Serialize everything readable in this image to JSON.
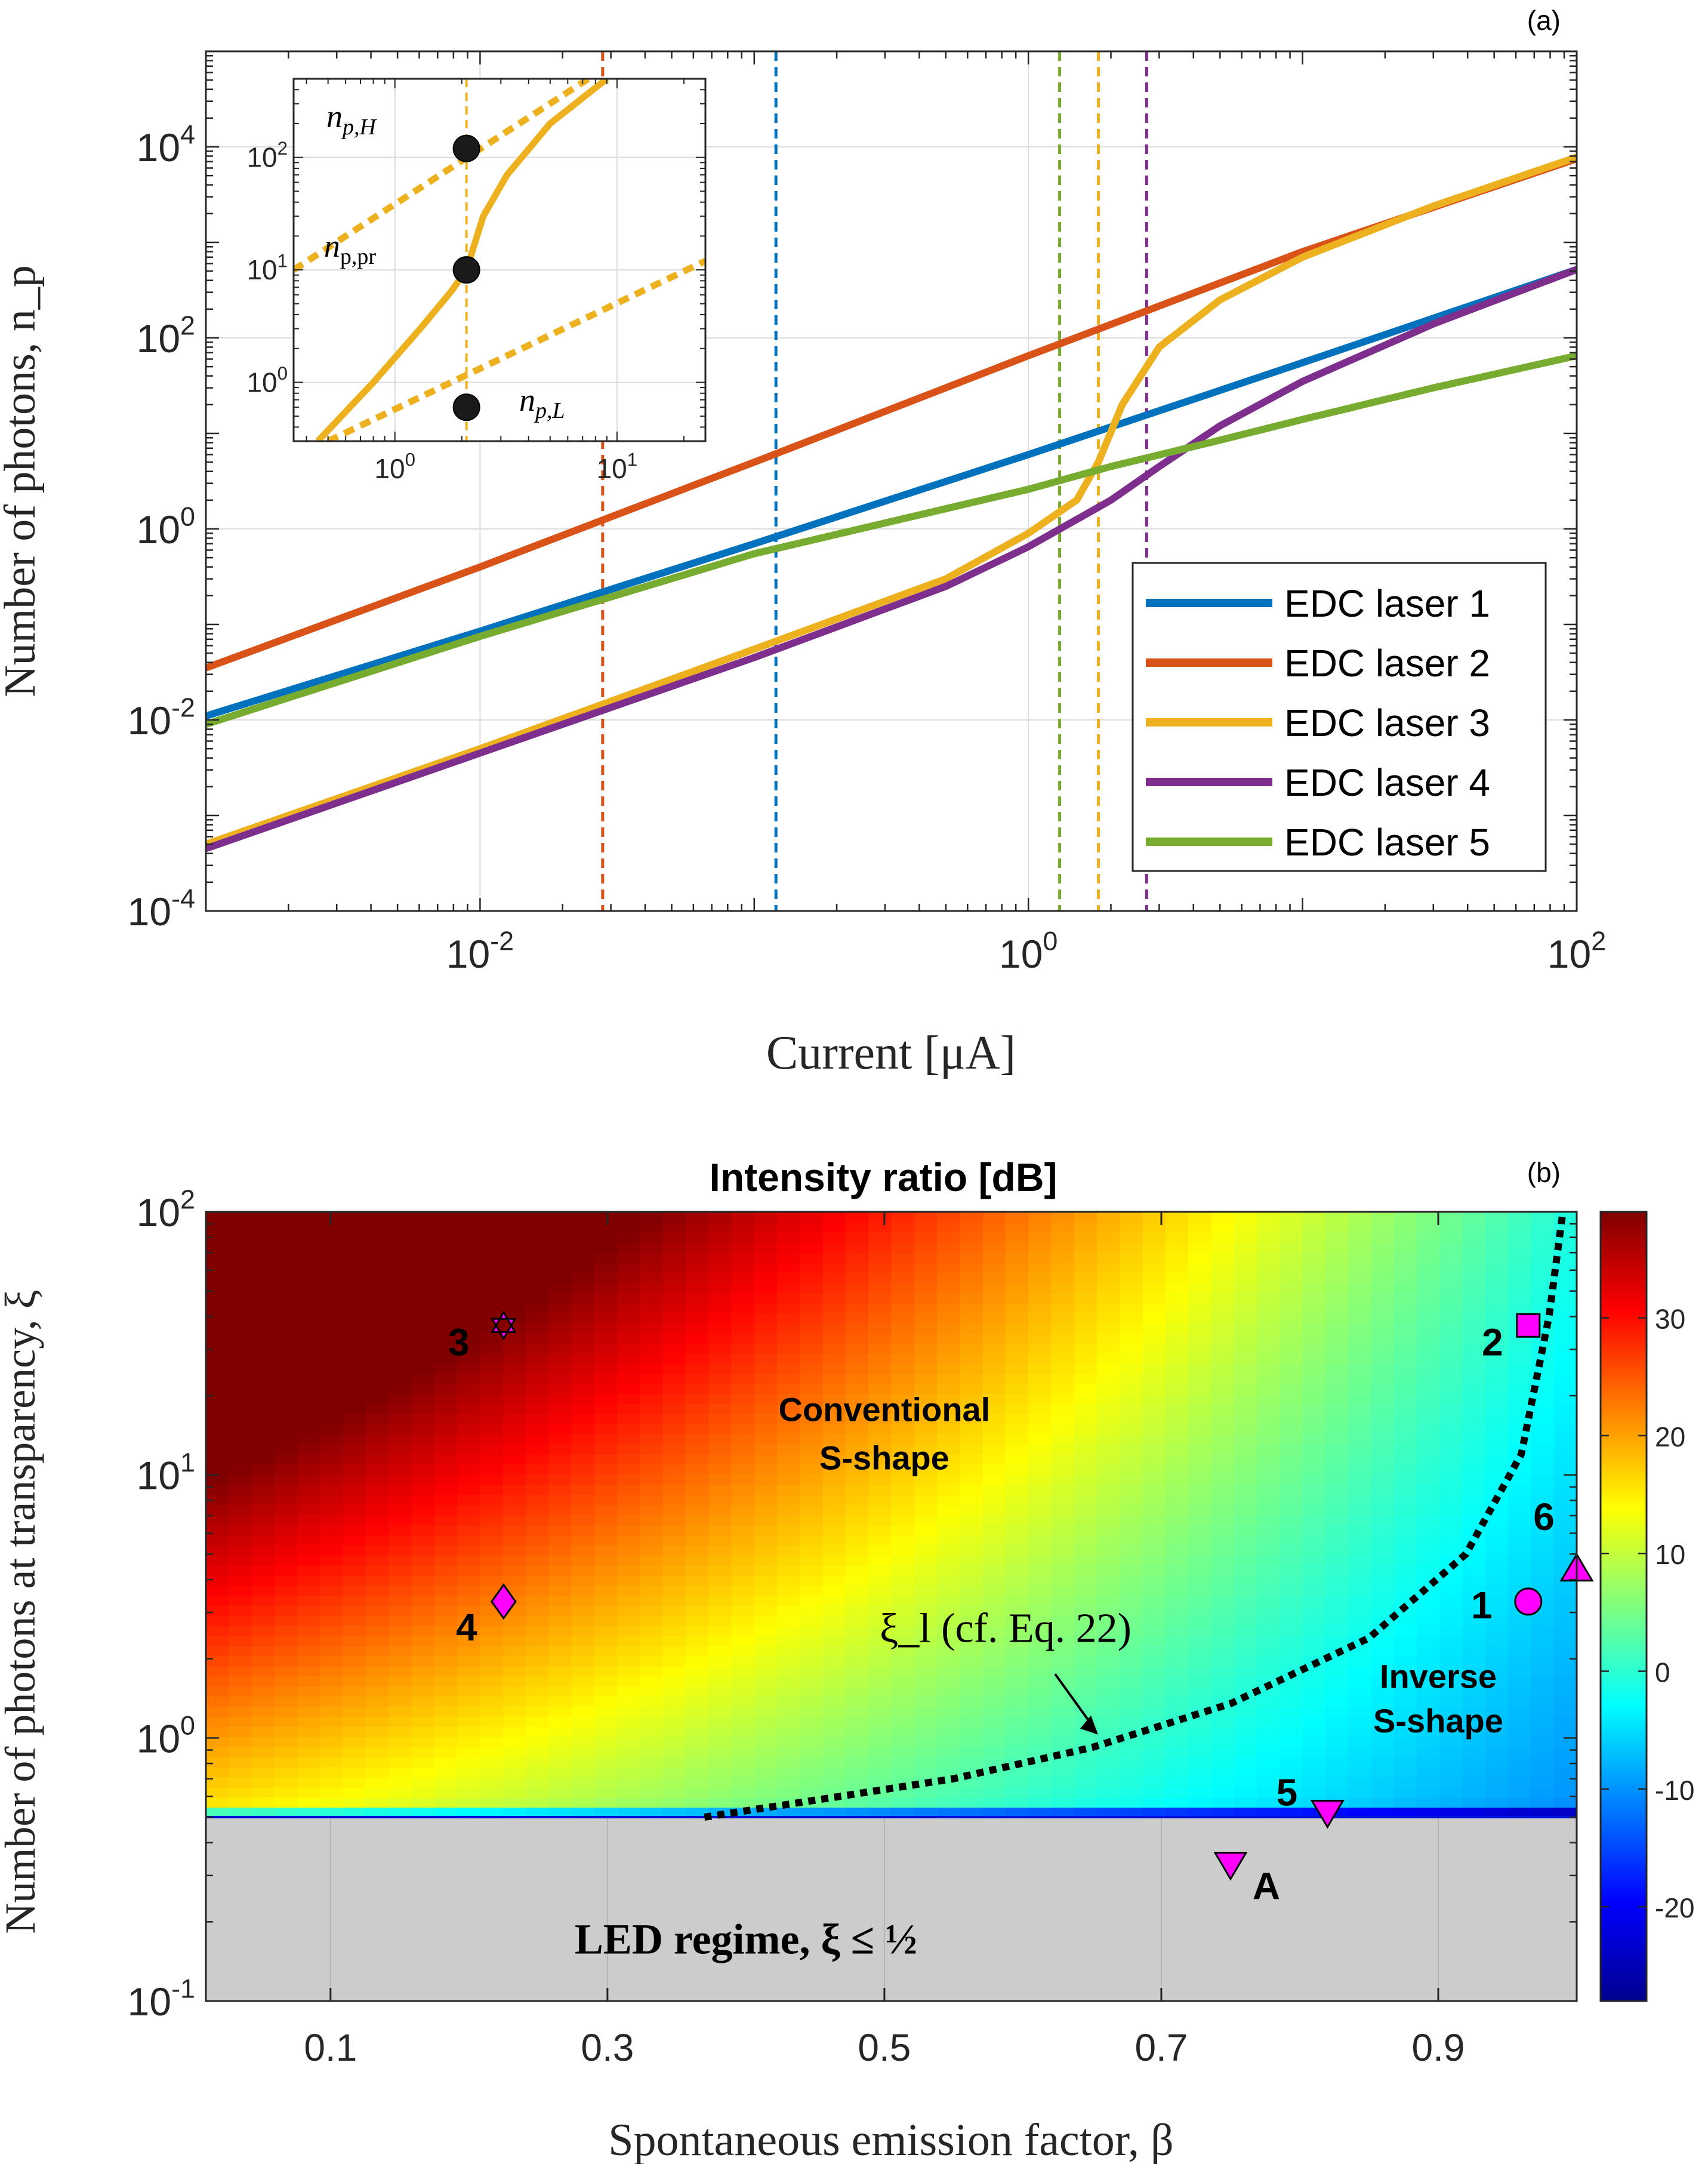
{
  "chart_data": [
    {
      "type": "line",
      "panel": "(a)",
      "xscale": "log",
      "yscale": "log",
      "xlabel": "Current [μA]",
      "ylabel": "Number of photons, n_p",
      "xlim": [
        0.001,
        100
      ],
      "ylim": [
        0.0001,
        100000
      ],
      "xticks": [
        {
          "v": 0.01,
          "base": "10",
          "exp": "-2"
        },
        {
          "v": 1,
          "base": "10",
          "exp": "0"
        },
        {
          "v": 100,
          "base": "10",
          "exp": "2"
        }
      ],
      "yticks": [
        {
          "v": 0.0001,
          "base": "10",
          "exp": "-4"
        },
        {
          "v": 0.01,
          "base": "10",
          "exp": "-2"
        },
        {
          "v": 1,
          "base": "10",
          "exp": "0"
        },
        {
          "v": 100,
          "base": "10",
          "exp": "2"
        },
        {
          "v": 10000,
          "base": "10",
          "exp": "4"
        }
      ],
      "legend": "bottom-right",
      "series": [
        {
          "name": "EDC laser 1",
          "color": "#0072BD",
          "threshold": 0.12,
          "x": [
            0.001,
            0.01,
            0.1,
            1,
            10,
            100
          ],
          "y": [
            0.011,
            0.085,
            0.7,
            6,
            55,
            520
          ]
        },
        {
          "name": "EDC laser 2",
          "color": "#D95319",
          "threshold": 0.028,
          "x": [
            0.001,
            0.01,
            0.1,
            1,
            10,
            100
          ],
          "y": [
            0.035,
            0.4,
            5,
            65,
            800,
            7500
          ]
        },
        {
          "name": "EDC laser 3",
          "color": "#EDB120",
          "threshold": 1.8,
          "x": [
            0.001,
            0.01,
            0.1,
            0.5,
            1,
            1.5,
            1.8,
            2.2,
            3,
            5,
            10,
            30,
            100
          ],
          "y": [
            0.0005,
            0.005,
            0.055,
            0.3,
            0.9,
            2,
            5,
            20,
            80,
            250,
            700,
            2400,
            7800
          ]
        },
        {
          "name": "EDC laser 4",
          "color": "#7E2F8E",
          "threshold": 2.7,
          "x": [
            0.001,
            0.01,
            0.1,
            0.5,
            1,
            2,
            3,
            5,
            10,
            30,
            100
          ],
          "y": [
            0.00045,
            0.0045,
            0.045,
            0.25,
            0.65,
            2,
            4.5,
            12,
            35,
            140,
            520
          ]
        },
        {
          "name": "EDC laser 5",
          "color": "#77AC30",
          "threshold": 1.3,
          "x": [
            0.001,
            0.01,
            0.1,
            1,
            2,
            5,
            10,
            30,
            100
          ],
          "y": [
            0.009,
            0.075,
            0.55,
            2.6,
            4.5,
            8.5,
            14,
            30,
            65
          ]
        }
      ],
      "inset": {
        "xlim": [
          0.35,
          25
        ],
        "ylim": [
          0.3,
          500
        ],
        "xticks": [
          {
            "v": 1,
            "base": "10",
            "exp": "0"
          },
          {
            "v": 10,
            "base": "10",
            "exp": "1"
          }
        ],
        "yticks": [
          {
            "v": 1,
            "base": "10",
            "exp": "0"
          },
          {
            "v": 10,
            "base": "10",
            "exp": "1"
          },
          {
            "v": 100,
            "base": "10",
            "exp": "2"
          }
        ],
        "threshold": 2.1,
        "curve": {
          "x": [
            0.45,
            0.8,
            1.3,
            1.8,
            2.1,
            2.5,
            3.2,
            5,
            9
          ],
          "y": [
            0.3,
            1,
            3,
            6.5,
            10,
            30,
            70,
            200,
            500
          ]
        },
        "asymptote_high": {
          "x": [
            0.35,
            8
          ],
          "y": [
            10,
            550
          ]
        },
        "asymptote_low": {
          "x": [
            0.5,
            25
          ],
          "y": [
            0.3,
            12
          ]
        },
        "points": [
          {
            "label": "H",
            "x": 2.1,
            "y": 120
          },
          {
            "label": "pr",
            "x": 2.1,
            "y": 10
          },
          {
            "label": "L",
            "x": 2.1,
            "y": 0.6
          }
        ]
      }
    },
    {
      "type": "heatmap",
      "panel": "(b)",
      "title": "Intensity ratio [dB]",
      "xlabel": "Spontaneous emission factor, β",
      "ylabel": "Number of photons at transparency, ξ",
      "xlim": [
        0.01,
        1
      ],
      "ylim": [
        0.1,
        100
      ],
      "yscale": "log",
      "xticks": [
        0.1,
        0.3,
        0.5,
        0.7,
        0.9
      ],
      "yticks": [
        {
          "v": 0.1,
          "base": "10",
          "exp": "-1"
        },
        {
          "v": 1,
          "base": "10",
          "exp": "0"
        },
        {
          "v": 10,
          "base": "10",
          "exp": "1"
        },
        {
          "v": 100,
          "base": "10",
          "exp": "2"
        }
      ],
      "colorbar": {
        "range": [
          -28,
          39
        ],
        "ticks": [
          -20,
          -10,
          0,
          10,
          20,
          30
        ]
      },
      "boundary_label": "ξ_l (cf. Eq. 22)",
      "boundary": {
        "beta": [
          0.37,
          0.45,
          0.55,
          0.65,
          0.75,
          0.85,
          0.92,
          0.96,
          0.98,
          0.99
        ],
        "xi": [
          0.5,
          0.58,
          0.7,
          0.92,
          1.35,
          2.4,
          5,
          12,
          40,
          100
        ]
      },
      "led_regime": {
        "label": "LED regime, ξ ≤ ½",
        "xi_max": 0.5
      },
      "region_labels": [
        {
          "text": "Conventional",
          "beta": 0.5,
          "xi": 16
        },
        {
          "text": "S-shape",
          "beta": 0.5,
          "xi": 10.5
        },
        {
          "text": "Inverse",
          "beta": 0.9,
          "xi": 1.55
        },
        {
          "text": "S-shape",
          "beta": 0.9,
          "xi": 1.05
        }
      ],
      "markers": [
        {
          "label": "1",
          "marker": "circle",
          "beta": 0.965,
          "xi": 3.3
        },
        {
          "label": "2",
          "marker": "square",
          "beta": 0.965,
          "xi": 37
        },
        {
          "label": "3",
          "marker": "hexagram",
          "beta": 0.225,
          "xi": 37
        },
        {
          "label": "4",
          "marker": "diamond",
          "beta": 0.225,
          "xi": 3.3
        },
        {
          "label": "5",
          "marker": "triangle-down",
          "beta": 0.82,
          "xi": 0.52
        },
        {
          "label": "6",
          "marker": "triangle-up",
          "beta": 1.0,
          "xi": 4.4
        },
        {
          "label": "A",
          "marker": "triangle-down",
          "beta": 0.75,
          "xi": 0.33
        }
      ],
      "marker_color": "#FF00FF"
    }
  ]
}
